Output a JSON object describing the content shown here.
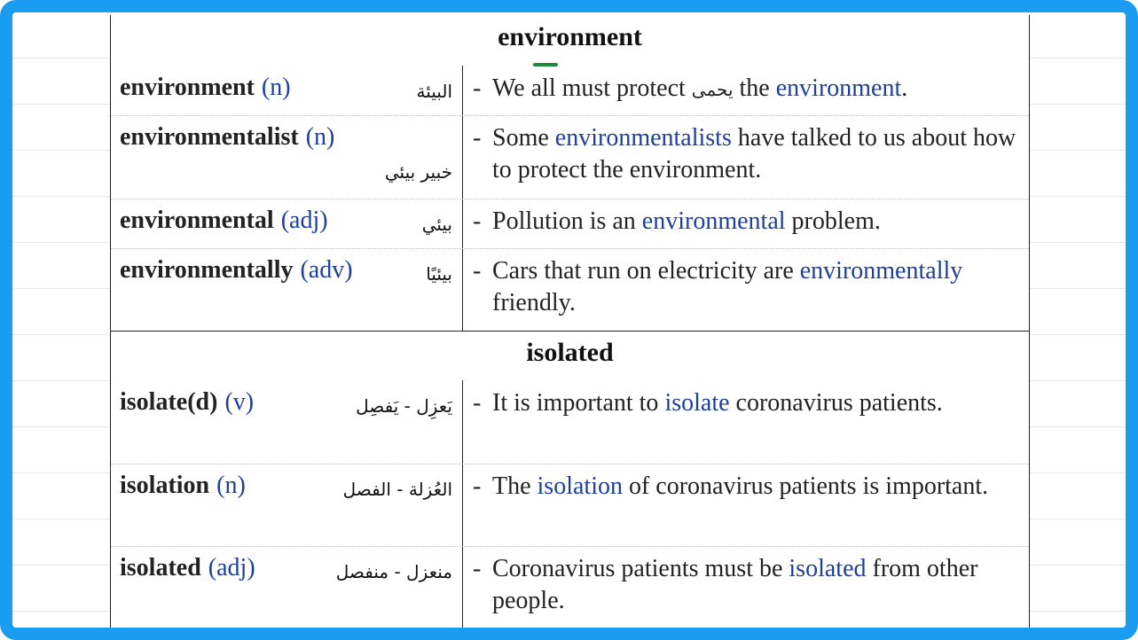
{
  "sections": [
    {
      "heading": "environment",
      "rows": [
        {
          "term": "environment",
          "pos": "(n)",
          "arabic": "البيئة",
          "example": {
            "before": "We all must protect ",
            "arabic": "يحمى",
            "mid": " the ",
            "hl": "environment",
            "after": "."
          }
        },
        {
          "term": "environmentalist",
          "pos": "(n)",
          "arabic": "خبير بيئي",
          "example": {
            "before": "Some ",
            "hl": "environmentalists",
            "after": " have talked to us about how to protect the environment."
          }
        },
        {
          "term": "environmental",
          "pos": "(adj)",
          "arabic": "بيئي",
          "example": {
            "before": "Pollution is an ",
            "hl": "environmental",
            "after": " problem."
          }
        },
        {
          "term": "environmentally",
          "pos": "(adv)",
          "arabic": "بيئيًا",
          "example": {
            "before": "Cars that run on electricity are ",
            "hl": "environmentally",
            "after": " friendly."
          }
        }
      ]
    },
    {
      "heading": "isolated",
      "rows": [
        {
          "term": "isolate(d)",
          "pos": "(v)",
          "arabic": "يَعزِل - يَفصِل",
          "example": {
            "before": "It is important to ",
            "hl": "isolate",
            "after": " coronavirus patients."
          }
        },
        {
          "term": "isolation",
          "pos": "(n)",
          "arabic": "العُزلة - الفصل",
          "example": {
            "before": "The ",
            "hl": "isolation",
            "after": " of coronavirus patients is important."
          }
        },
        {
          "term": "isolated",
          "pos": "(adj)",
          "arabic": "منعزل - منفصل",
          "example": {
            "before": "Coronavirus patients must be ",
            "hl": "isolated",
            "after": " from other people."
          }
        }
      ]
    }
  ],
  "dash": "-",
  "colors": {
    "frame": "#1a9df0",
    "highlight": "#1c3f9c",
    "text": "#222222",
    "mark": "#1b8a3a"
  }
}
